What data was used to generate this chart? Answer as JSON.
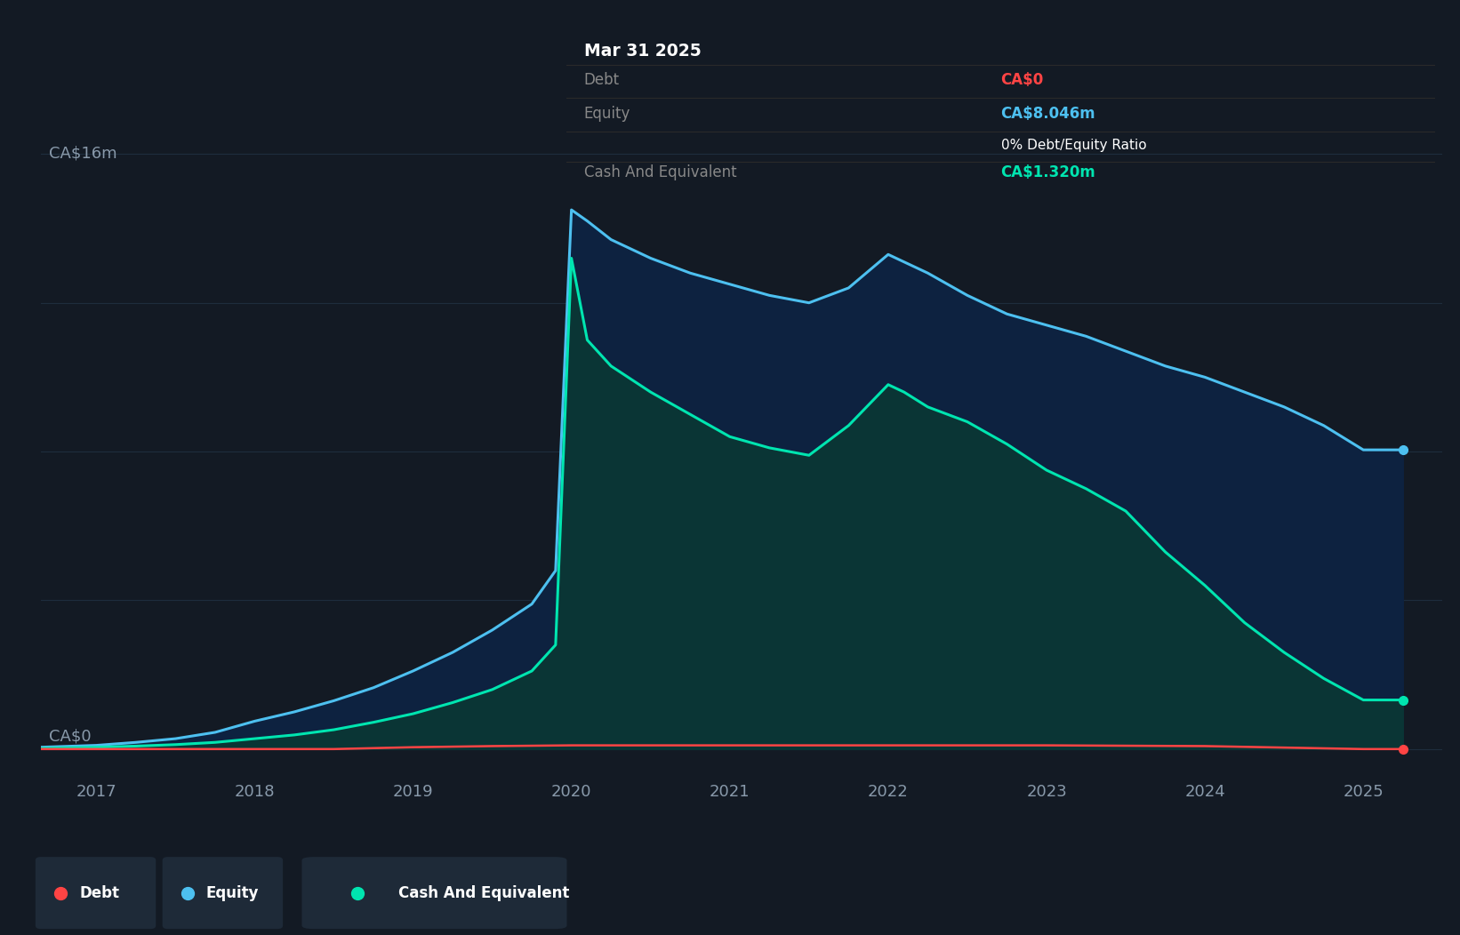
{
  "bg_color": "#131a24",
  "plot_bg_color": "#131a24",
  "grid_color": "#1e2d3d",
  "ylabel_top": "CA$16m",
  "ylabel_bottom": "CA$0",
  "ylim": [
    -0.6,
    17.0
  ],
  "xlim": [
    2016.65,
    2025.5
  ],
  "xticks": [
    2017,
    2018,
    2019,
    2020,
    2021,
    2022,
    2023,
    2024,
    2025
  ],
  "debt_color": "#ff4444",
  "equity_color": "#4dc0f0",
  "cash_color": "#00e5b0",
  "equity_fill_color": "#0d2240",
  "cash_fill_color": "#0a3535",
  "tooltip": {
    "date": "Mar 31 2025",
    "debt_label": "Debt",
    "debt_value": "CA$0",
    "debt_value_color": "#ff4444",
    "equity_label": "Equity",
    "equity_value": "CA$8.046m",
    "equity_value_color": "#4dc0f0",
    "ratio_label": "0% Debt/Equity Ratio",
    "ratio_label_color": "#ffffff",
    "cash_label": "Cash And Equivalent",
    "cash_value": "CA$1.320m",
    "cash_value_color": "#00e5b0",
    "bg_color": "#000000"
  },
  "legend": [
    {
      "label": "Debt",
      "color": "#ff4444"
    },
    {
      "label": "Equity",
      "color": "#4dc0f0"
    },
    {
      "label": "Cash And Equivalent",
      "color": "#00e5b0"
    }
  ],
  "equity_x": [
    2016.65,
    2017.0,
    2017.25,
    2017.5,
    2017.75,
    2018.0,
    2018.25,
    2018.5,
    2018.75,
    2019.0,
    2019.25,
    2019.5,
    2019.75,
    2019.9,
    2020.0,
    2020.1,
    2020.25,
    2020.5,
    2020.75,
    2021.0,
    2021.25,
    2021.5,
    2021.75,
    2022.0,
    2022.1,
    2022.25,
    2022.5,
    2022.75,
    2023.0,
    2023.25,
    2023.5,
    2023.75,
    2024.0,
    2024.25,
    2024.5,
    2024.75,
    2025.0,
    2025.25
  ],
  "equity_y": [
    0.05,
    0.1,
    0.18,
    0.28,
    0.45,
    0.75,
    1.0,
    1.3,
    1.65,
    2.1,
    2.6,
    3.2,
    3.9,
    4.8,
    14.5,
    14.2,
    13.7,
    13.2,
    12.8,
    12.5,
    12.2,
    12.0,
    12.4,
    13.3,
    13.1,
    12.8,
    12.2,
    11.7,
    11.4,
    11.1,
    10.7,
    10.3,
    10.0,
    9.6,
    9.2,
    8.7,
    8.046,
    8.046
  ],
  "cash_x": [
    2016.65,
    2017.0,
    2017.25,
    2017.5,
    2017.75,
    2018.0,
    2018.25,
    2018.5,
    2018.75,
    2019.0,
    2019.25,
    2019.5,
    2019.75,
    2019.9,
    2020.0,
    2020.1,
    2020.25,
    2020.5,
    2020.75,
    2021.0,
    2021.25,
    2021.5,
    2021.75,
    2022.0,
    2022.1,
    2022.25,
    2022.5,
    2022.75,
    2023.0,
    2023.25,
    2023.5,
    2023.75,
    2024.0,
    2024.25,
    2024.5,
    2024.75,
    2025.0,
    2025.25
  ],
  "cash_y": [
    0.02,
    0.05,
    0.08,
    0.12,
    0.18,
    0.28,
    0.38,
    0.52,
    0.72,
    0.95,
    1.25,
    1.6,
    2.1,
    2.8,
    13.2,
    11.0,
    10.3,
    9.6,
    9.0,
    8.4,
    8.1,
    7.9,
    8.7,
    9.8,
    9.6,
    9.2,
    8.8,
    8.2,
    7.5,
    7.0,
    6.4,
    5.3,
    4.4,
    3.4,
    2.6,
    1.9,
    1.32,
    1.32
  ],
  "debt_x": [
    2016.65,
    2017.0,
    2018.0,
    2018.5,
    2019.0,
    2019.5,
    2020.0,
    2021.0,
    2022.0,
    2023.0,
    2024.0,
    2025.0,
    2025.25
  ],
  "debt_y": [
    0.0,
    0.0,
    0.0,
    0.0,
    0.05,
    0.08,
    0.1,
    0.1,
    0.1,
    0.1,
    0.08,
    0.0,
    0.0
  ],
  "grid_y": [
    0,
    4,
    8,
    12,
    16
  ]
}
